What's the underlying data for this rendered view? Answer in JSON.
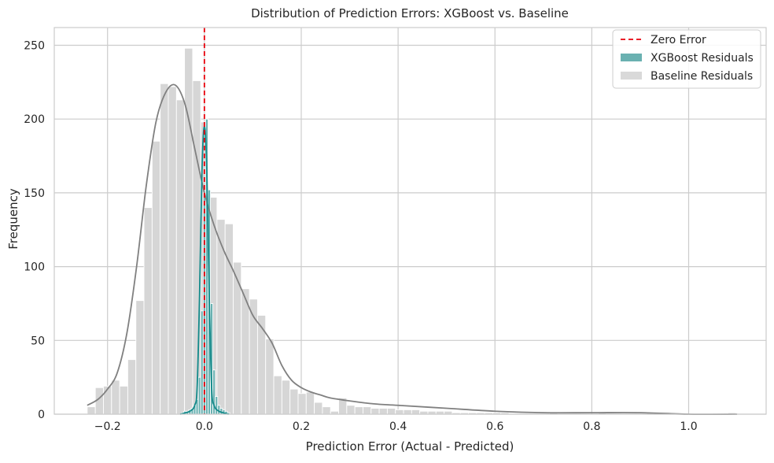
{
  "chart_data": {
    "type": "histogram",
    "title": "Distribution of Prediction Errors: XGBoost vs. Baseline",
    "xlabel": "Prediction Error (Actual - Predicted)",
    "ylabel": "Frequency",
    "xlim": [
      -0.31,
      1.16
    ],
    "ylim": [
      0,
      262
    ],
    "xticks": [
      -0.2,
      0.0,
      0.2,
      0.4,
      0.6,
      0.8,
      1.0
    ],
    "xtick_labels": [
      "−0.2",
      "0.0",
      "0.2",
      "0.4",
      "0.6",
      "0.8",
      "1.0"
    ],
    "yticks": [
      0,
      50,
      100,
      150,
      200,
      250
    ],
    "ytick_labels": [
      "0",
      "50",
      "100",
      "150",
      "200",
      "250"
    ],
    "grid": true,
    "legend_position": "top-right",
    "legend": [
      {
        "label": "Zero Error",
        "kind": "dashed-line",
        "color": "#e8000b"
      },
      {
        "label": "XGBoost Residuals",
        "kind": "patch",
        "color": "#6ab1b1"
      },
      {
        "label": "Baseline Residuals",
        "kind": "patch",
        "color": "#d9d9d9"
      }
    ],
    "reference_line": {
      "name": "Zero Error",
      "x": 0.0,
      "color": "#e8000b"
    },
    "series": [
      {
        "name": "Baseline Residuals",
        "kind": "histogram",
        "color": "#d6d6d6",
        "bin_start": -0.242,
        "bin_width": 0.01675,
        "counts": [
          5,
          18,
          19,
          23,
          19,
          37,
          77,
          140,
          185,
          224,
          222,
          213,
          248,
          226,
          198,
          147,
          132,
          129,
          103,
          85,
          78,
          67,
          51,
          26,
          23,
          17,
          14,
          15,
          8,
          5,
          2,
          11,
          6,
          5,
          5,
          4,
          4,
          4,
          3,
          3,
          3,
          2,
          2,
          2,
          2,
          1,
          1,
          1,
          1,
          1,
          1,
          1,
          0,
          0,
          0,
          0,
          0,
          1,
          0,
          0,
          0,
          0,
          0,
          1,
          0,
          0,
          0,
          0,
          0,
          1,
          0,
          0,
          0,
          0,
          0,
          0,
          0,
          0,
          0,
          1
        ]
      },
      {
        "name": "XGBoost Residuals",
        "kind": "histogram",
        "color": "#6ab1b1",
        "bin_start": -0.0475,
        "bin_width": 0.005,
        "counts": [
          1,
          2,
          2,
          3,
          4,
          6,
          10,
          25,
          70,
          150,
          200,
          152,
          75,
          30,
          12,
          6,
          4,
          3,
          2,
          1
        ]
      },
      {
        "name": "Baseline KDE",
        "kind": "kde-line",
        "color": "#808080",
        "x": [
          -0.242,
          -0.22,
          -0.2,
          -0.18,
          -0.16,
          -0.14,
          -0.12,
          -0.1,
          -0.08,
          -0.06,
          -0.04,
          -0.02,
          0.0,
          0.02,
          0.04,
          0.06,
          0.08,
          0.1,
          0.12,
          0.14,
          0.16,
          0.18,
          0.2,
          0.22,
          0.24,
          0.26,
          0.3,
          0.35,
          0.4,
          0.5,
          0.6,
          0.7,
          0.8,
          0.9,
          1.0,
          1.1
        ],
        "y": [
          6,
          10,
          17,
          28,
          55,
          100,
          155,
          198,
          218,
          223,
          210,
          180,
          150,
          128,
          111,
          97,
          82,
          67,
          58,
          48,
          33,
          23,
          18,
          15,
          13,
          11,
          9,
          7,
          6,
          4,
          2,
          1,
          1,
          1,
          0,
          0
        ]
      },
      {
        "name": "XGBoost KDE",
        "kind": "kde-line",
        "color": "#138a8a",
        "x": [
          -0.05,
          -0.03,
          -0.02,
          -0.015,
          -0.01,
          -0.005,
          0.0,
          0.005,
          0.01,
          0.015,
          0.02,
          0.03,
          0.05
        ],
        "y": [
          0,
          2,
          6,
          18,
          80,
          165,
          195,
          165,
          80,
          18,
          6,
          2,
          0
        ]
      }
    ]
  }
}
